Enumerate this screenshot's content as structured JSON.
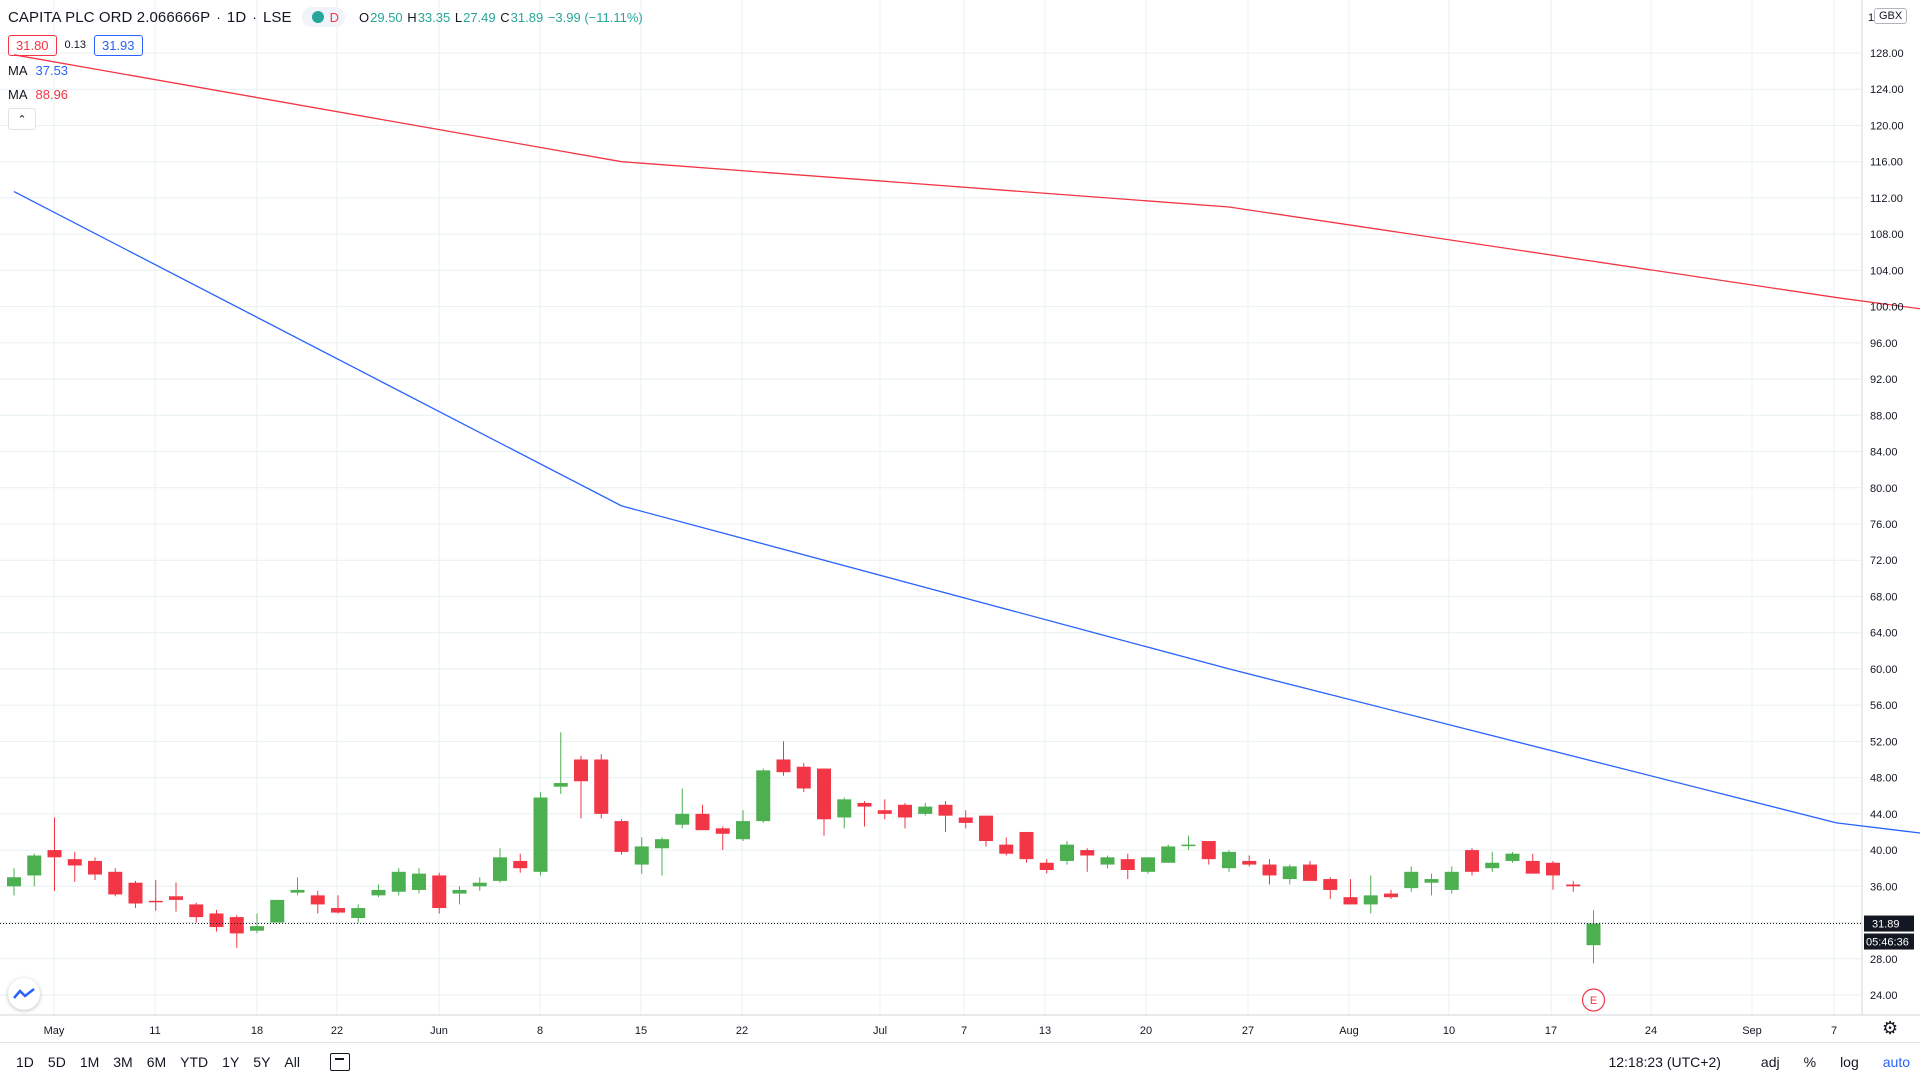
{
  "header": {
    "symbol": "CAPITA PLC ORD 2.066666P",
    "interval": "1D",
    "exchange": "LSE",
    "market_status": "D",
    "ohlc": {
      "open_label": "O",
      "open": "29.50",
      "high_label": "H",
      "high": "33.35",
      "low_label": "L",
      "low": "27.49",
      "close_label": "C",
      "close": "31.89",
      "change": "−3.99 (−11.11%)"
    },
    "bid": "31.80",
    "spread": "0.13",
    "ask": "31.93"
  },
  "indicators": [
    {
      "label": "MA",
      "value": "37.53",
      "color": "#2962ff"
    },
    {
      "label": "MA",
      "value": "88.96",
      "color": "#f23645"
    }
  ],
  "price_axis": {
    "currency": "GBX",
    "tick_labels": [
      "128.00",
      "124.00",
      "120.00",
      "116.00",
      "112.00",
      "108.00",
      "104.00",
      "100.00",
      "96.00",
      "92.00",
      "88.00",
      "84.00",
      "80.00",
      "76.00",
      "72.00",
      "68.00",
      "64.00",
      "60.00",
      "56.00",
      "52.00",
      "48.00",
      "44.00",
      "40.00",
      "36.00",
      "28.00",
      "24.00"
    ],
    "last_price": "31.89",
    "countdown": "05:46:36",
    "partial_top_tick": "1"
  },
  "time_axis": {
    "labels": [
      "May",
      "11",
      "18",
      "22",
      "Jun",
      "8",
      "15",
      "22",
      "Jul",
      "7",
      "13",
      "20",
      "27",
      "Aug",
      "10",
      "17",
      "24",
      "Sep",
      "7"
    ]
  },
  "earnings_marker": "E",
  "bottom_bar": {
    "ranges": [
      "1D",
      "5D",
      "1M",
      "3M",
      "6M",
      "YTD",
      "1Y",
      "5Y",
      "All"
    ],
    "clock": "12:18:23 (UTC+2)",
    "tools": [
      "adj",
      "%",
      "log",
      "auto"
    ]
  },
  "colors": {
    "up": "#26a69a",
    "up_fill": "#4caf50",
    "down": "#f23645",
    "ma_fast": "#2962ff",
    "ma_slow": "#f23645",
    "grid": "#e8f1f1"
  },
  "chart_data": {
    "type": "candlestick",
    "y_axis_range": [
      22,
      130
    ],
    "moving_averages": [
      {
        "label": "MA",
        "points_by_bar": [
          [
            0,
            112.7
          ],
          [
            30,
            78
          ],
          [
            60,
            60
          ],
          [
            90,
            43
          ],
          [
            110,
            37.6
          ],
          [
            130,
            37.53
          ]
        ]
      },
      {
        "label": "MA",
        "points_by_bar": [
          [
            0,
            127.8
          ],
          [
            30,
            116
          ],
          [
            60,
            111
          ],
          [
            90,
            101
          ],
          [
            110,
            95
          ],
          [
            130,
            88.96
          ]
        ]
      }
    ],
    "candles": [
      {
        "o": 36.0,
        "h": 38.0,
        "l": 35.0,
        "c": 37.0
      },
      {
        "o": 37.2,
        "h": 39.6,
        "l": 36.0,
        "c": 39.4
      },
      {
        "o": 40.0,
        "h": 43.6,
        "l": 35.5,
        "c": 39.2
      },
      {
        "o": 39.0,
        "h": 39.8,
        "l": 36.5,
        "c": 38.3
      },
      {
        "o": 38.8,
        "h": 39.2,
        "l": 36.7,
        "c": 37.3
      },
      {
        "o": 37.6,
        "h": 38.0,
        "l": 34.9,
        "c": 35.1
      },
      {
        "o": 36.4,
        "h": 36.6,
        "l": 33.6,
        "c": 34.1
      },
      {
        "o": 34.4,
        "h": 36.7,
        "l": 33.3,
        "c": 34.3
      },
      {
        "o": 34.9,
        "h": 36.4,
        "l": 33.2,
        "c": 34.5
      },
      {
        "o": 34.0,
        "h": 34.2,
        "l": 32.0,
        "c": 32.6
      },
      {
        "o": 33.0,
        "h": 33.4,
        "l": 31.0,
        "c": 31.5
      },
      {
        "o": 32.6,
        "h": 32.8,
        "l": 29.2,
        "c": 30.8
      },
      {
        "o": 31.1,
        "h": 33.0,
        "l": 30.8,
        "c": 31.6
      },
      {
        "o": 32.0,
        "h": 34.4,
        "l": 32.0,
        "c": 34.5
      },
      {
        "o": 35.3,
        "h": 37.0,
        "l": 35.0,
        "c": 35.6
      },
      {
        "o": 35.0,
        "h": 35.5,
        "l": 33.0,
        "c": 34.0
      },
      {
        "o": 33.6,
        "h": 35.0,
        "l": 33.0,
        "c": 33.1
      },
      {
        "o": 32.5,
        "h": 34.0,
        "l": 32.0,
        "c": 33.6
      },
      {
        "o": 35.0,
        "h": 36.2,
        "l": 34.8,
        "c": 35.6
      },
      {
        "o": 35.4,
        "h": 38.0,
        "l": 35.0,
        "c": 37.6
      },
      {
        "o": 35.6,
        "h": 38.0,
        "l": 35.2,
        "c": 37.4
      },
      {
        "o": 37.2,
        "h": 37.5,
        "l": 33.0,
        "c": 33.6
      },
      {
        "o": 35.2,
        "h": 36.0,
        "l": 34.0,
        "c": 35.6
      },
      {
        "o": 36.0,
        "h": 37.0,
        "l": 35.5,
        "c": 36.4
      },
      {
        "o": 36.6,
        "h": 40.2,
        "l": 36.4,
        "c": 39.2
      },
      {
        "o": 38.8,
        "h": 39.6,
        "l": 37.5,
        "c": 38.0
      },
      {
        "o": 37.6,
        "h": 46.4,
        "l": 37.2,
        "c": 45.8
      },
      {
        "o": 47.0,
        "h": 53.0,
        "l": 46.2,
        "c": 47.4
      },
      {
        "o": 50.0,
        "h": 50.4,
        "l": 43.5,
        "c": 47.6
      },
      {
        "o": 50.0,
        "h": 50.6,
        "l": 43.5,
        "c": 44.0
      },
      {
        "o": 43.2,
        "h": 43.4,
        "l": 39.5,
        "c": 39.8
      },
      {
        "o": 38.4,
        "h": 41.4,
        "l": 37.4,
        "c": 40.4
      },
      {
        "o": 40.2,
        "h": 41.4,
        "l": 37.2,
        "c": 41.2
      },
      {
        "o": 42.8,
        "h": 46.8,
        "l": 42.4,
        "c": 44.0
      },
      {
        "o": 44.0,
        "h": 45.0,
        "l": 42.2,
        "c": 42.2
      },
      {
        "o": 42.4,
        "h": 42.6,
        "l": 40.0,
        "c": 41.8
      },
      {
        "o": 41.2,
        "h": 44.4,
        "l": 41.0,
        "c": 43.2
      },
      {
        "o": 43.2,
        "h": 49.0,
        "l": 43.0,
        "c": 48.8
      },
      {
        "o": 50.0,
        "h": 52.0,
        "l": 48.2,
        "c": 48.6
      },
      {
        "o": 49.2,
        "h": 49.6,
        "l": 46.4,
        "c": 46.8
      },
      {
        "o": 49.0,
        "h": 49.0,
        "l": 41.6,
        "c": 43.4
      },
      {
        "o": 43.6,
        "h": 45.8,
        "l": 42.4,
        "c": 45.6
      },
      {
        "o": 45.2,
        "h": 45.4,
        "l": 42.6,
        "c": 44.8
      },
      {
        "o": 44.4,
        "h": 45.6,
        "l": 43.4,
        "c": 44.0
      },
      {
        "o": 45.0,
        "h": 45.2,
        "l": 42.4,
        "c": 43.6
      },
      {
        "o": 44.0,
        "h": 45.2,
        "l": 43.8,
        "c": 44.8
      },
      {
        "o": 45.0,
        "h": 45.4,
        "l": 42.0,
        "c": 43.8
      },
      {
        "o": 43.6,
        "h": 44.4,
        "l": 42.4,
        "c": 43.0
      },
      {
        "o": 43.8,
        "h": 43.8,
        "l": 40.4,
        "c": 41.0
      },
      {
        "o": 40.6,
        "h": 41.4,
        "l": 39.4,
        "c": 39.6
      },
      {
        "o": 42.0,
        "h": 42.0,
        "l": 38.6,
        "c": 39.0
      },
      {
        "o": 38.6,
        "h": 39.0,
        "l": 37.4,
        "c": 37.8
      },
      {
        "o": 38.8,
        "h": 41.0,
        "l": 38.4,
        "c": 40.6
      },
      {
        "o": 40.0,
        "h": 40.2,
        "l": 37.6,
        "c": 39.4
      },
      {
        "o": 38.4,
        "h": 39.4,
        "l": 38.0,
        "c": 39.2
      },
      {
        "o": 39.0,
        "h": 39.6,
        "l": 36.8,
        "c": 37.8
      },
      {
        "o": 37.6,
        "h": 39.2,
        "l": 37.4,
        "c": 39.2
      },
      {
        "o": 38.6,
        "h": 40.6,
        "l": 38.6,
        "c": 40.4
      },
      {
        "o": 40.6,
        "h": 41.6,
        "l": 40.0,
        "c": 40.6
      },
      {
        "o": 41.0,
        "h": 41.0,
        "l": 38.4,
        "c": 39.0
      },
      {
        "o": 38.0,
        "h": 40.0,
        "l": 37.6,
        "c": 39.8
      },
      {
        "o": 38.8,
        "h": 39.4,
        "l": 38.2,
        "c": 38.4
      },
      {
        "o": 38.4,
        "h": 39.0,
        "l": 36.2,
        "c": 37.2
      },
      {
        "o": 36.8,
        "h": 38.4,
        "l": 36.2,
        "c": 38.2
      },
      {
        "o": 38.4,
        "h": 38.8,
        "l": 36.6,
        "c": 36.6
      },
      {
        "o": 36.8,
        "h": 37.0,
        "l": 34.6,
        "c": 35.6
      },
      {
        "o": 34.8,
        "h": 36.8,
        "l": 34.6,
        "c": 34.0
      },
      {
        "o": 34.0,
        "h": 37.2,
        "l": 33.0,
        "c": 35.0
      },
      {
        "o": 35.2,
        "h": 35.6,
        "l": 34.6,
        "c": 34.8
      },
      {
        "o": 35.8,
        "h": 38.2,
        "l": 35.4,
        "c": 37.6
      },
      {
        "o": 36.4,
        "h": 37.4,
        "l": 35.0,
        "c": 36.8
      },
      {
        "o": 35.6,
        "h": 38.2,
        "l": 35.2,
        "c": 37.6
      },
      {
        "o": 40.0,
        "h": 40.2,
        "l": 37.2,
        "c": 37.6
      },
      {
        "o": 38.0,
        "h": 39.8,
        "l": 37.6,
        "c": 38.6
      },
      {
        "o": 38.8,
        "h": 39.8,
        "l": 38.6,
        "c": 39.6
      },
      {
        "o": 38.8,
        "h": 39.6,
        "l": 37.4,
        "c": 37.4
      },
      {
        "o": 38.6,
        "h": 38.8,
        "l": 35.6,
        "c": 37.2
      },
      {
        "o": 36.2,
        "h": 36.6,
        "l": 35.4,
        "c": 36.0
      },
      {
        "o": 29.5,
        "h": 33.35,
        "l": 27.49,
        "c": 31.89
      }
    ]
  }
}
